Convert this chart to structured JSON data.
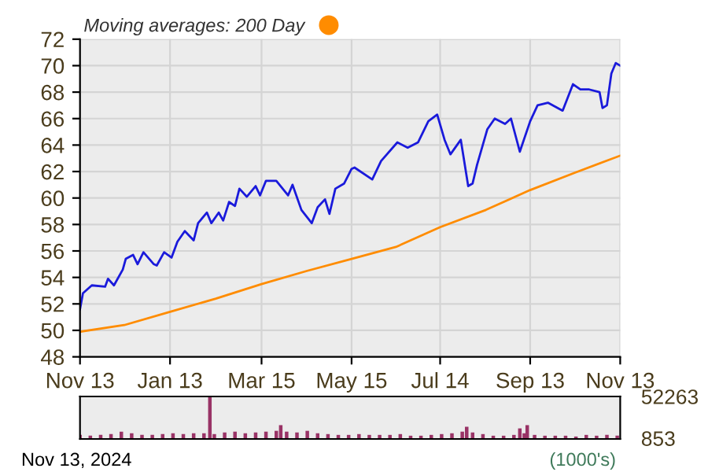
{
  "chart_data": [
    {
      "type": "line",
      "xlim": [
        "2023-11-13",
        "2024-11-13"
      ],
      "xticks": [
        {
          "value": "2023-11-13",
          "label": "Nov 13"
        },
        {
          "value": "2024-01-13",
          "label": "Jan 13"
        },
        {
          "value": "2024-03-15",
          "label": "Mar 15"
        },
        {
          "value": "2024-05-15",
          "label": "May 15"
        },
        {
          "value": "2024-07-14",
          "label": "Jul 14"
        },
        {
          "value": "2024-09-13",
          "label": "Sep 13"
        },
        {
          "value": "2024-11-13",
          "label": "Nov 13"
        }
      ],
      "ylim": [
        48,
        72
      ],
      "yticks": [
        48,
        50,
        52,
        54,
        56,
        58,
        60,
        62,
        64,
        66,
        68,
        70,
        72
      ],
      "grid": true,
      "legend": "top left",
      "line_style": "solid",
      "series": [
        {
          "color": "#1a1adb",
          "x": [
            "2023-11-13",
            "2023-11-15",
            "2023-11-21",
            "2023-11-30",
            "2023-12-02",
            "2023-12-06",
            "2023-12-12",
            "2023-12-14",
            "2023-12-19",
            "2023-12-22",
            "2023-12-26",
            "2024-01-02",
            "2024-01-04",
            "2024-01-09",
            "2024-01-14",
            "2024-01-18",
            "2024-01-23",
            "2024-01-29",
            "2024-02-01",
            "2024-02-07",
            "2024-02-10",
            "2024-02-15",
            "2024-02-18",
            "2024-02-22",
            "2024-02-26",
            "2024-02-29",
            "2024-03-05",
            "2024-03-11",
            "2024-03-14",
            "2024-03-18",
            "2024-03-25",
            "2024-04-02",
            "2024-04-05",
            "2024-04-11",
            "2024-04-18",
            "2024-04-22",
            "2024-04-27",
            "2024-04-30",
            "2024-05-04",
            "2024-05-10",
            "2024-05-15",
            "2024-05-17",
            "2024-05-29",
            "2024-06-04",
            "2024-06-15",
            "2024-06-22",
            "2024-06-29",
            "2024-07-06",
            "2024-07-12",
            "2024-07-17",
            "2024-07-21",
            "2024-07-28",
            "2024-08-02",
            "2024-08-05",
            "2024-08-08",
            "2024-08-15",
            "2024-08-20",
            "2024-08-27",
            "2024-08-31",
            "2024-09-06",
            "2024-09-13",
            "2024-09-18",
            "2024-09-25",
            "2024-10-05",
            "2024-10-12",
            "2024-10-17",
            "2024-10-23",
            "2024-10-30",
            "2024-11-01",
            "2024-11-04",
            "2024-11-07",
            "2024-11-10",
            "2024-11-13"
          ],
          "values": [
            51.6,
            52.8,
            53.4,
            53.3,
            53.9,
            53.4,
            54.6,
            55.4,
            55.7,
            55.0,
            55.9,
            55.0,
            54.9,
            55.9,
            55.5,
            56.7,
            57.5,
            56.8,
            58.1,
            58.9,
            58.1,
            58.9,
            58.3,
            59.7,
            59.4,
            60.7,
            60.1,
            60.9,
            60.2,
            61.3,
            61.3,
            60.2,
            61.0,
            59.1,
            58.1,
            59.3,
            59.9,
            58.8,
            60.7,
            61.1,
            62.2,
            62.3,
            61.4,
            62.8,
            64.2,
            63.8,
            64.2,
            65.8,
            66.3,
            64.4,
            63.3,
            64.4,
            60.9,
            61.1,
            62.5,
            65.2,
            66.0,
            65.6,
            66.0,
            63.5,
            65.8,
            67.0,
            67.2,
            66.6,
            68.6,
            68.2,
            68.2,
            68.0,
            66.8,
            67.0,
            69.4,
            70.2,
            70.0
          ]
        },
        {
          "name": "Moving averages: 200 Day",
          "color": "#ff8c00",
          "x": [
            "2023-11-13",
            "2023-12-13",
            "2024-01-13",
            "2024-02-13",
            "2024-03-15",
            "2024-04-15",
            "2024-05-15",
            "2024-06-14",
            "2024-07-14",
            "2024-08-14",
            "2024-09-13",
            "2024-10-13",
            "2024-11-13"
          ],
          "values": [
            49.9,
            50.4,
            51.4,
            52.4,
            53.5,
            54.5,
            55.4,
            56.3,
            57.8,
            59.1,
            60.6,
            61.9,
            63.2
          ]
        }
      ]
    },
    {
      "type": "bar",
      "tick_labels": "y",
      "xlim": [
        "2023-11-13",
        "2024-11-13"
      ],
      "ylim": [
        0,
        52263
      ],
      "yticks": [
        853,
        52263
      ],
      "annotations": [
        "(1000's)",
        "Nov 13, 2024"
      ],
      "series": [
        {
          "color": "#993366",
          "x": [
            "2023-11-13",
            "2023-11-20",
            "2023-11-27",
            "2023-12-04",
            "2023-12-11",
            "2023-12-18",
            "2023-12-25",
            "2024-01-01",
            "2024-01-08",
            "2024-01-15",
            "2024-01-22",
            "2024-01-29",
            "2024-02-05",
            "2024-02-09",
            "2024-02-12",
            "2024-02-19",
            "2024-02-26",
            "2024-03-04",
            "2024-03-11",
            "2024-03-18",
            "2024-03-25",
            "2024-03-28",
            "2024-04-01",
            "2024-04-08",
            "2024-04-15",
            "2024-04-22",
            "2024-04-29",
            "2024-05-06",
            "2024-05-13",
            "2024-05-20",
            "2024-05-27",
            "2024-06-03",
            "2024-06-10",
            "2024-06-17",
            "2024-06-24",
            "2024-07-01",
            "2024-07-08",
            "2024-07-15",
            "2024-07-22",
            "2024-07-29",
            "2024-08-01",
            "2024-08-05",
            "2024-08-12",
            "2024-08-19",
            "2024-08-26",
            "2024-09-02",
            "2024-09-06",
            "2024-09-09",
            "2024-09-11",
            "2024-09-16",
            "2024-09-23",
            "2024-09-30",
            "2024-10-07",
            "2024-10-14",
            "2024-10-21",
            "2024-10-28",
            "2024-11-04",
            "2024-11-11"
          ],
          "values": [
            5000,
            4000,
            5000,
            6000,
            9000,
            7000,
            5000,
            5000,
            6000,
            7000,
            6000,
            7000,
            7000,
            52263,
            6000,
            8000,
            9000,
            7000,
            8000,
            9000,
            10000,
            17000,
            9000,
            8000,
            10000,
            7000,
            6000,
            5000,
            5000,
            6000,
            5000,
            5000,
            5000,
            6000,
            4000,
            4000,
            5000,
            6000,
            7000,
            9000,
            15000,
            8000,
            6000,
            4000,
            4000,
            5000,
            13000,
            7000,
            17000,
            5000,
            4000,
            4000,
            4000,
            3000,
            5000,
            4000,
            5000,
            4000
          ]
        }
      ]
    }
  ]
}
